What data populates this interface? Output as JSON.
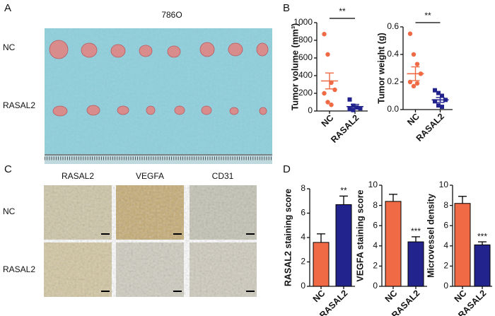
{
  "panels": {
    "a": {
      "letter": "A",
      "title": "786O",
      "rows": [
        "NC",
        "RASAL2"
      ]
    },
    "b": {
      "letter": "B"
    },
    "c": {
      "letter": "C",
      "columns": [
        "RASAL2",
        "VEGFA",
        "CD31"
      ],
      "rows": [
        "NC",
        "RASAL2"
      ]
    },
    "d": {
      "letter": "D"
    }
  },
  "chart_data": [
    {
      "type": "strip",
      "ylabel": "Tumor volume (mm³)",
      "categories": [
        "NC",
        "RASAL2"
      ],
      "colors": [
        "#ef6a45",
        "#23238e"
      ],
      "markers": [
        "circle",
        "square"
      ],
      "points": [
        [
          870,
          640,
          320,
          240,
          200,
          100,
          70
        ],
        [
          130,
          60,
          40,
          30,
          20,
          10
        ]
      ],
      "means": [
        340,
        50
      ],
      "errors": [
        90,
        25
      ],
      "ylim": [
        0,
        1000
      ],
      "yticks": [
        0,
        200,
        400,
        600,
        800,
        1000
      ],
      "annotation": "**"
    },
    {
      "type": "strip",
      "ylabel": "Tumor weight (g)",
      "categories": [
        "NC",
        "RASAL2"
      ],
      "colors": [
        "#ef6a45",
        "#23238e"
      ],
      "markers": [
        "circle",
        "square"
      ],
      "points": [
        [
          0.55,
          0.4,
          0.33,
          0.26,
          0.2,
          0.17,
          0.19
        ],
        [
          0.14,
          0.12,
          0.1,
          0.07,
          0.06,
          0.03,
          0.02
        ]
      ],
      "means": [
        0.26,
        0.07
      ],
      "errors": [
        0.05,
        0.018
      ],
      "ylim": [
        0,
        0.6
      ],
      "yticks": [
        {
          "value": 0,
          "label": "0.0"
        },
        0.2,
        0.4,
        0.6
      ],
      "annotation": "**"
    },
    {
      "type": "bar",
      "ylabel": "RASAL2 staining score",
      "categories": [
        "NC",
        "RASAL2"
      ],
      "colors": [
        "#ef6a45",
        "#23238e"
      ],
      "values": [
        3.6,
        6.7
      ],
      "errors": [
        0.7,
        0.7
      ],
      "ylim": [
        0,
        8
      ],
      "yticks": [
        0,
        2,
        4,
        6,
        8
      ],
      "annotation": "**"
    },
    {
      "type": "bar",
      "ylabel": "VEGFA staining score",
      "categories": [
        "NC",
        "RASAL2"
      ],
      "colors": [
        "#ef6a45",
        "#23238e"
      ],
      "values": [
        8.4,
        4.4
      ],
      "errors": [
        0.7,
        0.5
      ],
      "ylim": [
        0,
        10
      ],
      "yticks": [
        0,
        2,
        4,
        6,
        8,
        10
      ],
      "annotation": "***"
    },
    {
      "type": "bar",
      "ylabel": "Microvessel density",
      "categories": [
        "NC",
        "RASAL2"
      ],
      "colors": [
        "#ef6a45",
        "#23238e"
      ],
      "values": [
        8.2,
        4.1
      ],
      "errors": [
        0.7,
        0.3
      ],
      "ylim": [
        0,
        10
      ],
      "yticks": [
        0,
        2,
        4,
        6,
        8,
        10
      ],
      "annotation": "***"
    }
  ]
}
